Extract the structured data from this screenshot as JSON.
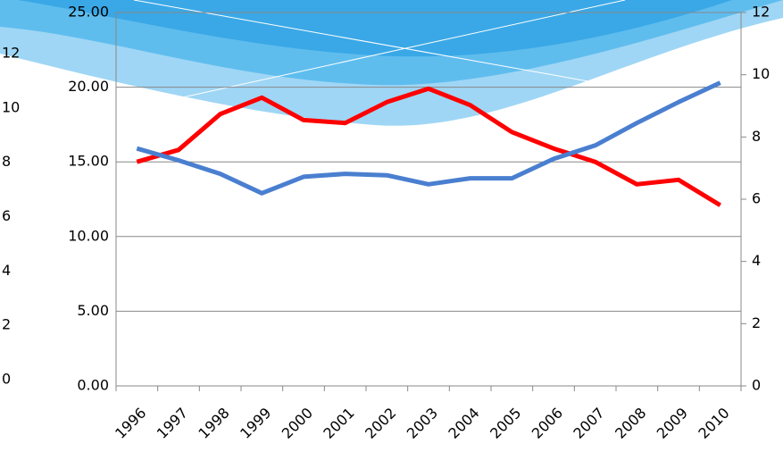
{
  "chart_data": {
    "type": "line",
    "categories": [
      "1996",
      "1997",
      "1998",
      "1999",
      "2000",
      "2001",
      "2002",
      "2003",
      "2004",
      "2005",
      "2006",
      "2007",
      "2008",
      "2009",
      "2010"
    ],
    "series": [
      {
        "color": "#ff0000",
        "values": [
          15.0,
          15.8,
          18.2,
          19.3,
          17.8,
          17.6,
          19.0,
          19.9,
          18.8,
          17.0,
          15.9,
          15.0,
          13.5,
          13.8,
          12.1
        ]
      },
      {
        "color": "#4a7fd0",
        "values": [
          15.9,
          15.1,
          14.2,
          12.9,
          14.0,
          14.2,
          14.1,
          13.5,
          13.9,
          13.9,
          15.2,
          16.1,
          17.6,
          19.0,
          20.3
        ]
      }
    ],
    "ylim": [
      0,
      25
    ],
    "yticks": [
      {
        "value": 0,
        "label": "0.00"
      },
      {
        "value": 5,
        "label": "5.00"
      },
      {
        "value": 10,
        "label": "10.00"
      },
      {
        "value": 15,
        "label": "15.00"
      },
      {
        "value": 20,
        "label": "20.00"
      },
      {
        "value": 25,
        "label": "25.00"
      }
    ],
    "y2lim": [
      0,
      12
    ],
    "y2ticks": [
      0,
      2,
      4,
      6,
      8,
      10,
      12
    ],
    "y3lim": [
      0,
      12
    ],
    "y3ticks": [
      0,
      2,
      4,
      6,
      8,
      10,
      12
    ],
    "grid": true
  }
}
